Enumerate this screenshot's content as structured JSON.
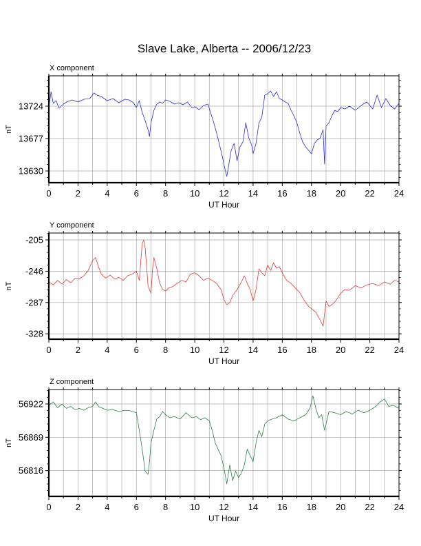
{
  "chart_data": [
    {
      "type": "line",
      "title": "Slave Lake, Alberta -- 2006/12/23",
      "panel_label": "X component",
      "xlabel": "UT Hour",
      "ylabel": "nT",
      "xlim": [
        0,
        24
      ],
      "ylim": [
        13613,
        13768
      ],
      "xticks": [
        "0",
        "2",
        "4",
        "6",
        "8",
        "10",
        "12",
        "14",
        "16",
        "18",
        "20",
        "22",
        "24"
      ],
      "yticks": [
        "13724",
        "13677",
        "13630"
      ],
      "ytick_values": [
        13724,
        13677,
        13630
      ],
      "grid": true,
      "color": "#2b2bd6",
      "series": [
        {
          "x": [
            0,
            0.15,
            0.3,
            0.5,
            0.7,
            1.0,
            1.3,
            1.6,
            2.0,
            2.4,
            2.8,
            3.1,
            3.3,
            3.6,
            4.0,
            4.4,
            4.8,
            5.2,
            5.5,
            5.8,
            6.0,
            6.2,
            6.4,
            6.6,
            6.8,
            6.9,
            7.0,
            7.2,
            7.4,
            7.6,
            7.8,
            8.0,
            8.3,
            8.6,
            8.9,
            9.2,
            9.5,
            9.8,
            10.0,
            10.3,
            10.6,
            10.9,
            11.1,
            11.3,
            11.5,
            11.7,
            11.9,
            12.0,
            12.1,
            12.2,
            12.3,
            12.5,
            12.7,
            12.9,
            13.1,
            13.3,
            13.5,
            13.7,
            13.9,
            14.0,
            14.2,
            14.4,
            14.6,
            14.8,
            15.0,
            15.2,
            15.4,
            15.6,
            15.8,
            16.0,
            16.2,
            16.4,
            16.6,
            16.8,
            17.0,
            17.2,
            17.4,
            17.6,
            17.8,
            18.0,
            18.2,
            18.4,
            18.6,
            18.8,
            18.9,
            19.0,
            19.2,
            19.4,
            19.6,
            19.8,
            20.0,
            20.3,
            20.6,
            21.0,
            21.4,
            21.8,
            22.2,
            22.5,
            22.8,
            23.1,
            23.4,
            23.7,
            24.0
          ],
          "y": [
            13722,
            13745,
            13728,
            13732,
            13721,
            13727,
            13731,
            13733,
            13730,
            13734,
            13735,
            13743,
            13740,
            13738,
            13732,
            13735,
            13729,
            13734,
            13733,
            13729,
            13722,
            13732,
            13715,
            13703,
            13690,
            13680,
            13700,
            13718,
            13727,
            13730,
            13728,
            13733,
            13731,
            13727,
            13729,
            13726,
            13730,
            13722,
            13723,
            13719,
            13725,
            13727,
            13714,
            13700,
            13685,
            13668,
            13650,
            13640,
            13630,
            13622,
            13635,
            13660,
            13670,
            13645,
            13665,
            13672,
            13700,
            13678,
            13668,
            13655,
            13670,
            13700,
            13708,
            13740,
            13742,
            13746,
            13738,
            13745,
            13735,
            13733,
            13730,
            13728,
            13718,
            13710,
            13700,
            13685,
            13672,
            13665,
            13660,
            13655,
            13670,
            13675,
            13678,
            13690,
            13640,
            13695,
            13700,
            13710,
            13718,
            13716,
            13722,
            13720,
            13724,
            13718,
            13725,
            13730,
            13720,
            13740,
            13722,
            13735,
            13725,
            13720,
            13728
          ]
        }
      ]
    },
    {
      "type": "line",
      "panel_label": "Y component",
      "xlabel": "UT Hour",
      "ylabel": "nT",
      "xlim": [
        0,
        24
      ],
      "ylim": [
        -335,
        -196
      ],
      "xticks": [
        "0",
        "2",
        "4",
        "6",
        "8",
        "10",
        "12",
        "14",
        "16",
        "18",
        "20",
        "22",
        "24"
      ],
      "yticks": [
        "-205",
        "-246",
        "-287",
        "-328"
      ],
      "ytick_values": [
        -205,
        -246,
        -287,
        -328
      ],
      "grid": true,
      "color": "#e23b3b",
      "series": [
        {
          "x": [
            0,
            0.3,
            0.6,
            0.9,
            1.2,
            1.5,
            1.8,
            2.1,
            2.4,
            2.7,
            3.0,
            3.2,
            3.4,
            3.6,
            3.9,
            4.2,
            4.5,
            4.8,
            5.1,
            5.4,
            5.7,
            6.0,
            6.2,
            6.4,
            6.5,
            6.6,
            6.7,
            6.8,
            7.0,
            7.1,
            7.2,
            7.4,
            7.6,
            7.8,
            8.0,
            8.2,
            8.5,
            8.8,
            9.1,
            9.4,
            9.7,
            10.0,
            10.3,
            10.6,
            10.9,
            11.2,
            11.5,
            11.8,
            12.0,
            12.2,
            12.4,
            12.6,
            12.9,
            13.2,
            13.4,
            13.6,
            13.8,
            14.0,
            14.2,
            14.4,
            14.6,
            14.8,
            15.0,
            15.2,
            15.4,
            15.6,
            15.8,
            16.0,
            16.3,
            16.6,
            16.9,
            17.2,
            17.5,
            17.8,
            18.0,
            18.3,
            18.6,
            18.8,
            19.0,
            19.2,
            19.4,
            19.7,
            20.0,
            20.3,
            20.6,
            21.0,
            21.4,
            21.8,
            22.2,
            22.6,
            23.0,
            23.4,
            23.7,
            24.0
          ],
          "y": [
            -260,
            -264,
            -258,
            -263,
            -257,
            -261,
            -255,
            -256,
            -252,
            -245,
            -232,
            -228,
            -240,
            -250,
            -255,
            -251,
            -256,
            -254,
            -258,
            -252,
            -250,
            -246,
            -258,
            -210,
            -205,
            -215,
            -240,
            -265,
            -275,
            -245,
            -228,
            -242,
            -262,
            -270,
            -272,
            -268,
            -266,
            -262,
            -258,
            -260,
            -250,
            -248,
            -252,
            -258,
            -255,
            -258,
            -262,
            -270,
            -283,
            -290,
            -287,
            -278,
            -270,
            -260,
            -252,
            -262,
            -270,
            -285,
            -270,
            -243,
            -248,
            -252,
            -238,
            -245,
            -235,
            -242,
            -240,
            -248,
            -258,
            -262,
            -268,
            -274,
            -284,
            -292,
            -295,
            -300,
            -310,
            -318,
            -285,
            -292,
            -290,
            -284,
            -275,
            -270,
            -271,
            -265,
            -268,
            -264,
            -262,
            -265,
            -260,
            -263,
            -258,
            -260
          ]
        }
      ]
    },
    {
      "type": "line",
      "panel_label": "Z component",
      "xlabel": "UT Hour",
      "ylabel": "nT",
      "xlim": [
        0,
        24
      ],
      "ylim": [
        56775,
        56945
      ],
      "xticks": [
        "0",
        "2",
        "4",
        "6",
        "8",
        "10",
        "12",
        "14",
        "16",
        "18",
        "20",
        "22",
        "24"
      ],
      "yticks": [
        "56922",
        "56869",
        "56816"
      ],
      "ytick_values": [
        56922,
        56869,
        56816
      ],
      "grid": true,
      "color": "#2e7d4a",
      "series": [
        {
          "x": [
            0,
            0.3,
            0.6,
            0.9,
            1.2,
            1.5,
            1.8,
            2.1,
            2.4,
            2.7,
            3.0,
            3.2,
            3.4,
            3.7,
            4.0,
            4.4,
            4.8,
            5.2,
            5.6,
            6.0,
            6.2,
            6.4,
            6.6,
            6.8,
            6.9,
            7.0,
            7.2,
            7.4,
            7.6,
            7.8,
            8.0,
            8.3,
            8.6,
            9.0,
            9.4,
            9.8,
            10.1,
            10.4,
            10.7,
            11.0,
            11.2,
            11.4,
            11.6,
            11.8,
            12.0,
            12.2,
            12.4,
            12.6,
            12.8,
            13.0,
            13.2,
            13.4,
            13.6,
            13.8,
            14.0,
            14.2,
            14.4,
            14.6,
            14.8,
            15.0,
            15.3,
            15.6,
            16.0,
            16.4,
            16.8,
            17.2,
            17.6,
            17.9,
            18.1,
            18.3,
            18.5,
            18.7,
            18.9,
            19.2,
            19.6,
            20.0,
            20.4,
            20.8,
            21.2,
            21.6,
            22.0,
            22.4,
            22.7,
            23.0,
            23.3,
            23.6,
            24.0
          ],
          "y": [
            56920,
            56925,
            56916,
            56922,
            56915,
            56918,
            56913,
            56915,
            56912,
            56916,
            56918,
            56925,
            56918,
            56915,
            56912,
            56913,
            56910,
            56912,
            56911,
            56908,
            56880,
            56850,
            56815,
            56810,
            56830,
            56860,
            56880,
            56898,
            56902,
            56910,
            56905,
            56900,
            56902,
            56898,
            56908,
            56900,
            56902,
            56897,
            56900,
            56895,
            56880,
            56860,
            56850,
            56840,
            56820,
            56795,
            56825,
            56800,
            56815,
            56805,
            56812,
            56825,
            56850,
            56840,
            56830,
            56860,
            56880,
            56870,
            56890,
            56895,
            56898,
            56900,
            56905,
            56898,
            56895,
            56900,
            56905,
            56915,
            56935,
            56915,
            56900,
            56905,
            56880,
            56910,
            56908,
            56905,
            56910,
            56906,
            56912,
            56908,
            56912,
            56918,
            56925,
            56930,
            56918,
            56920,
            56915
          ]
        }
      ]
    }
  ]
}
